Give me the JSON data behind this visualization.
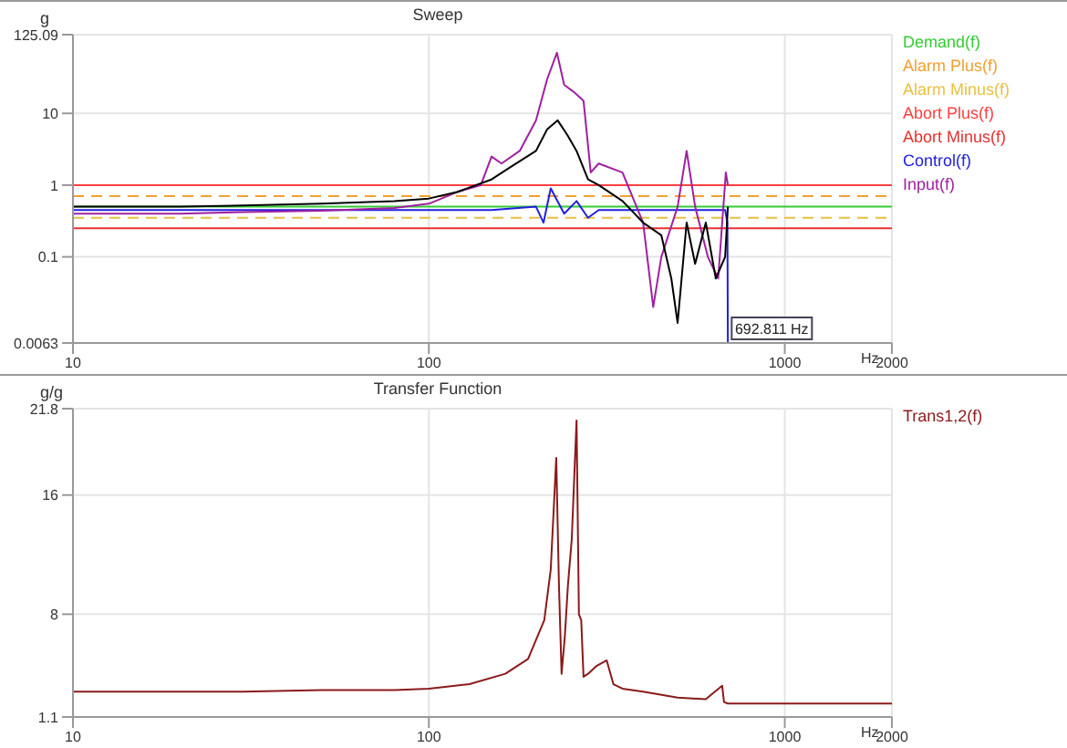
{
  "chart_data": [
    {
      "type": "line",
      "title": "Sweep",
      "ylabel": "g",
      "xlabel": "Hz",
      "log": "xy",
      "xlim": [
        10,
        2000
      ],
      "xticks": [
        10,
        100,
        1000,
        2000
      ],
      "ylim": [
        0.0063,
        125.09
      ],
      "yticks": [
        0.0063,
        0.1,
        1,
        10,
        125.09
      ],
      "grid": true,
      "legend": "top right",
      "series": [
        {
          "name": "Demand(f)",
          "color": "#33cc33",
          "x": [
            10,
            2000
          ],
          "values": [
            0.5,
            0.5
          ]
        },
        {
          "name": "Alarm Plus(f)",
          "color": "#f0a030",
          "line_style": "dashed",
          "x": [
            10,
            2000
          ],
          "values": [
            0.7,
            0.7
          ]
        },
        {
          "name": "Alarm Minus(f)",
          "color": "#e8c040",
          "line_style": "dashed",
          "x": [
            10,
            2000
          ],
          "values": [
            0.35,
            0.35
          ]
        },
        {
          "name": "Abort Plus(f)",
          "color": "#ff4040",
          "x": [
            10,
            2000
          ],
          "values": [
            1,
            1
          ]
        },
        {
          "name": "Abort Minus(f)",
          "color": "#e83030",
          "x": [
            10,
            2000
          ],
          "values": [
            0.25,
            0.25
          ]
        },
        {
          "name": "Control(f)",
          "color": "#2020e0",
          "x": [
            10,
            50,
            100,
            150,
            200,
            210,
            220,
            240,
            260,
            280,
            300,
            400,
            500,
            600,
            680,
            690,
            692
          ],
          "values": [
            0.45,
            0.45,
            0.45,
            0.45,
            0.5,
            0.3,
            0.9,
            0.4,
            0.6,
            0.35,
            0.45,
            0.45,
            0.45,
            0.45,
            0.45,
            0.3,
            0.0063
          ]
        },
        {
          "name": "Input(f)",
          "color": "#a020a0",
          "x": [
            10,
            20,
            30,
            50,
            80,
            100,
            120,
            140,
            150,
            160,
            180,
            200,
            215,
            229,
            240,
            255,
            272,
            285,
            300,
            350,
            400,
            427,
            450,
            500,
            530,
            560,
            608,
            650,
            683,
            692
          ],
          "values": [
            0.4,
            0.4,
            0.42,
            0.44,
            0.48,
            0.55,
            0.8,
            1,
            2.5,
            2,
            3,
            8,
            30,
            70,
            25,
            20,
            15,
            1.5,
            2,
            1.5,
            0.3,
            0.02,
            0.1,
            0.5,
            3,
            0.5,
            0.1,
            0.05,
            1.5,
            1
          ]
        },
        {
          "color": "#000000",
          "x": [
            10,
            20,
            30,
            50,
            80,
            100,
            120,
            150,
            170,
            200,
            215,
            230,
            245,
            260,
            280,
            300,
            350,
            400,
            450,
            480,
            500,
            530,
            560,
            600,
            640,
            680,
            692
          ],
          "values": [
            0.5,
            0.5,
            0.52,
            0.55,
            0.6,
            0.65,
            0.8,
            1.2,
            1.8,
            3,
            6,
            8,
            5,
            3,
            1.2,
            1,
            0.6,
            0.3,
            0.2,
            0.05,
            0.012,
            0.3,
            0.08,
            0.3,
            0.05,
            0.1,
            0.5
          ]
        }
      ],
      "annotations": [
        {
          "text": "692.811 Hz",
          "x": 692.811,
          "y": 0.0063
        }
      ]
    },
    {
      "type": "line",
      "title": "Transfer Function",
      "ylabel": "g/g",
      "xlabel": "Hz",
      "log": "x",
      "xlim": [
        10,
        2000
      ],
      "xticks": [
        10,
        100,
        1000,
        2000
      ],
      "ylim": [
        1.1,
        21.8
      ],
      "yticks": [
        1.1,
        8,
        16,
        21.8
      ],
      "grid": true,
      "legend": "top right",
      "series": [
        {
          "name": "Trans1,2(f)",
          "color": "#8b1a1a",
          "x": [
            10,
            30,
            50,
            80,
            100,
            130,
            164,
            190,
            211,
            220,
            228,
            232,
            236,
            241,
            246,
            252,
            260,
            264,
            268,
            272,
            280,
            295,
            316,
            330,
            350,
            400,
            500,
            600,
            667,
            675,
            692,
            1000,
            2000
          ],
          "values": [
            2.8,
            2.8,
            2.9,
            2.9,
            3,
            3.3,
            4,
            5,
            7.6,
            11,
            18.5,
            10,
            4,
            6.5,
            10,
            13,
            21,
            8,
            7.6,
            3.8,
            4,
            4.5,
            4.9,
            3.3,
            3,
            2.8,
            2.4,
            2.3,
            3.2,
            2.1,
            2,
            2,
            2
          ]
        }
      ]
    }
  ]
}
